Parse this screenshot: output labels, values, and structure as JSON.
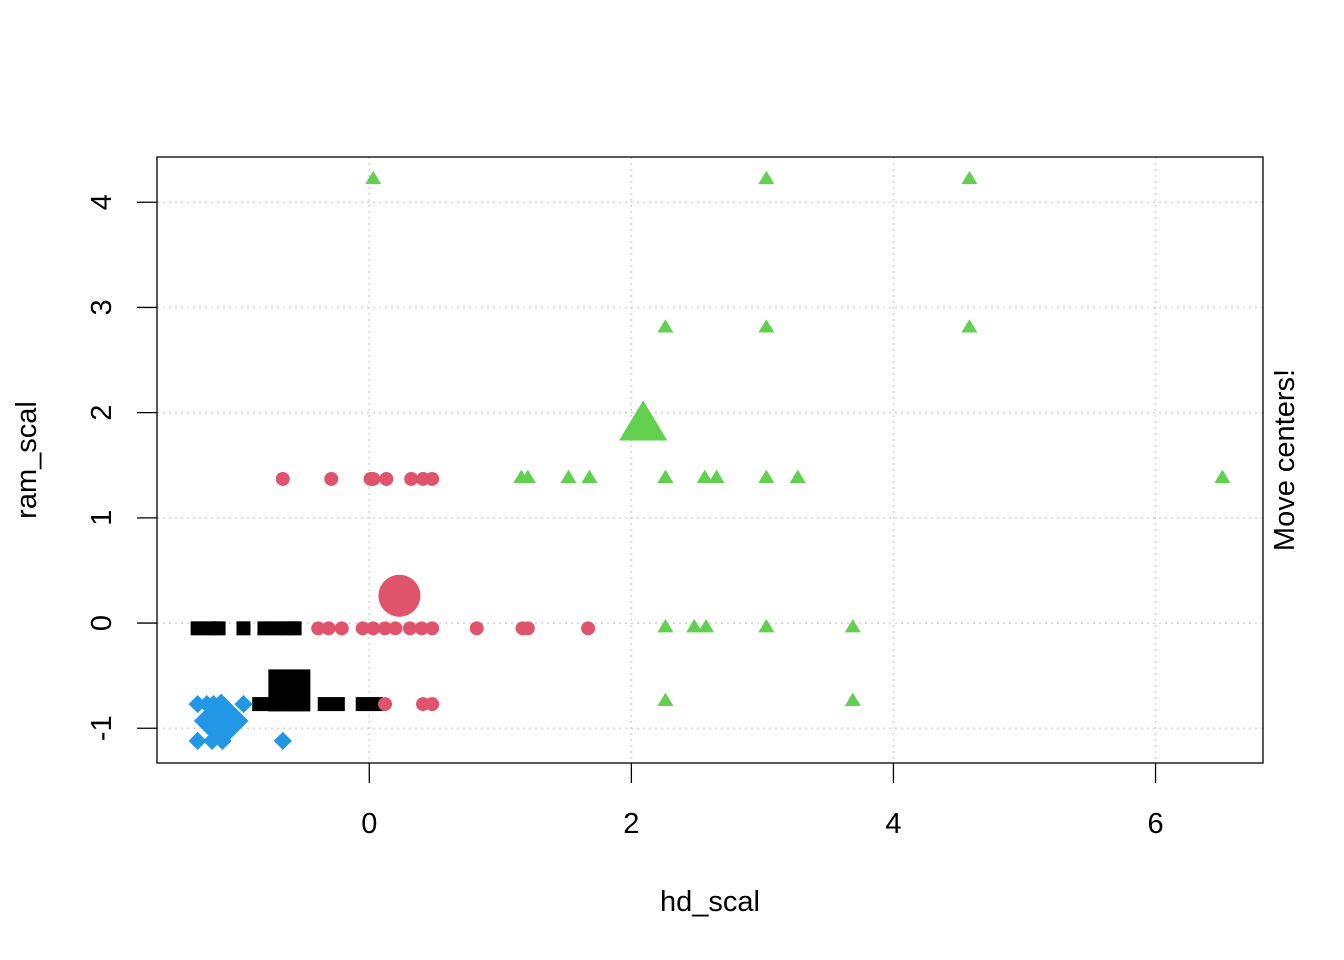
{
  "chart_data": {
    "type": "scatter",
    "title": "",
    "xlabel": "hd_scal",
    "ylabel": "ram_scal",
    "right_label": "Move centers!",
    "xlim": [
      -1.62,
      6.82
    ],
    "ylim": [
      -1.33,
      4.43
    ],
    "xticks": [
      0,
      2,
      4,
      6
    ],
    "yticks": [
      -1,
      0,
      1,
      2,
      3,
      4
    ],
    "grid": true,
    "series": [
      {
        "marker": "square",
        "color": "#000000",
        "points": [
          [
            -1.31,
            -0.05
          ],
          [
            -1.21,
            -0.05
          ],
          [
            -1.15,
            -0.05
          ],
          [
            -0.96,
            -0.05
          ],
          [
            -0.8,
            -0.05
          ],
          [
            -0.7,
            -0.05
          ],
          [
            -0.62,
            -0.05
          ],
          [
            -0.57,
            -0.05
          ],
          [
            -0.84,
            -0.77
          ],
          [
            -0.74,
            -0.77
          ],
          [
            -0.55,
            -0.77
          ],
          [
            -0.34,
            -0.77
          ],
          [
            -0.24,
            -0.77
          ],
          [
            -0.05,
            -0.77
          ],
          [
            0.05,
            -0.77
          ]
        ],
        "center": [
          -0.61,
          -0.64
        ]
      },
      {
        "marker": "circle",
        "color": "#DF536B",
        "points": [
          [
            -0.39,
            -0.05
          ],
          [
            -0.31,
            -0.05
          ],
          [
            -0.21,
            -0.05
          ],
          [
            -0.05,
            -0.05
          ],
          [
            0.03,
            -0.05
          ],
          [
            0.12,
            -0.05
          ],
          [
            0.2,
            -0.05
          ],
          [
            0.31,
            -0.05
          ],
          [
            0.4,
            -0.05
          ],
          [
            0.48,
            -0.05
          ],
          [
            0.82,
            -0.05
          ],
          [
            1.17,
            -0.05
          ],
          [
            1.21,
            -0.05
          ],
          [
            1.67,
            -0.05
          ],
          [
            -0.66,
            1.37
          ],
          [
            -0.29,
            1.37
          ],
          [
            0.01,
            1.37
          ],
          [
            0.03,
            1.37
          ],
          [
            0.13,
            1.37
          ],
          [
            0.32,
            1.37
          ],
          [
            0.41,
            1.37
          ],
          [
            0.48,
            1.37
          ],
          [
            0.12,
            -0.77
          ],
          [
            0.41,
            -0.77
          ],
          [
            0.48,
            -0.77
          ]
        ],
        "center": [
          0.23,
          0.26
        ]
      },
      {
        "marker": "triangle",
        "color": "#61D04F",
        "points": [
          [
            1.16,
            1.38
          ],
          [
            1.21,
            1.38
          ],
          [
            1.52,
            1.38
          ],
          [
            1.68,
            1.38
          ],
          [
            2.26,
            1.38
          ],
          [
            2.56,
            1.38
          ],
          [
            2.65,
            1.38
          ],
          [
            3.03,
            1.38
          ],
          [
            3.27,
            1.38
          ],
          [
            6.51,
            1.38
          ],
          [
            2.26,
            -0.04
          ],
          [
            2.48,
            -0.04
          ],
          [
            2.57,
            -0.04
          ],
          [
            3.03,
            -0.04
          ],
          [
            3.69,
            -0.04
          ],
          [
            2.26,
            -0.74
          ],
          [
            3.69,
            -0.74
          ],
          [
            2.26,
            2.81
          ],
          [
            3.03,
            2.81
          ],
          [
            4.58,
            2.81
          ],
          [
            0.03,
            4.22
          ],
          [
            3.03,
            4.22
          ],
          [
            4.58,
            4.22
          ]
        ],
        "center": [
          2.09,
          1.88
        ]
      },
      {
        "marker": "diamond",
        "color": "#2297E6",
        "points": [
          [
            -1.31,
            -0.77
          ],
          [
            -1.24,
            -0.77
          ],
          [
            -1.19,
            -0.77
          ],
          [
            -1.14,
            -0.77
          ],
          [
            -0.96,
            -0.77
          ],
          [
            -1.31,
            -1.12
          ],
          [
            -1.2,
            -1.12
          ],
          [
            -1.12,
            -1.12
          ],
          [
            -0.66,
            -1.12
          ]
        ],
        "center": [
          -1.13,
          -0.93
        ]
      }
    ]
  }
}
